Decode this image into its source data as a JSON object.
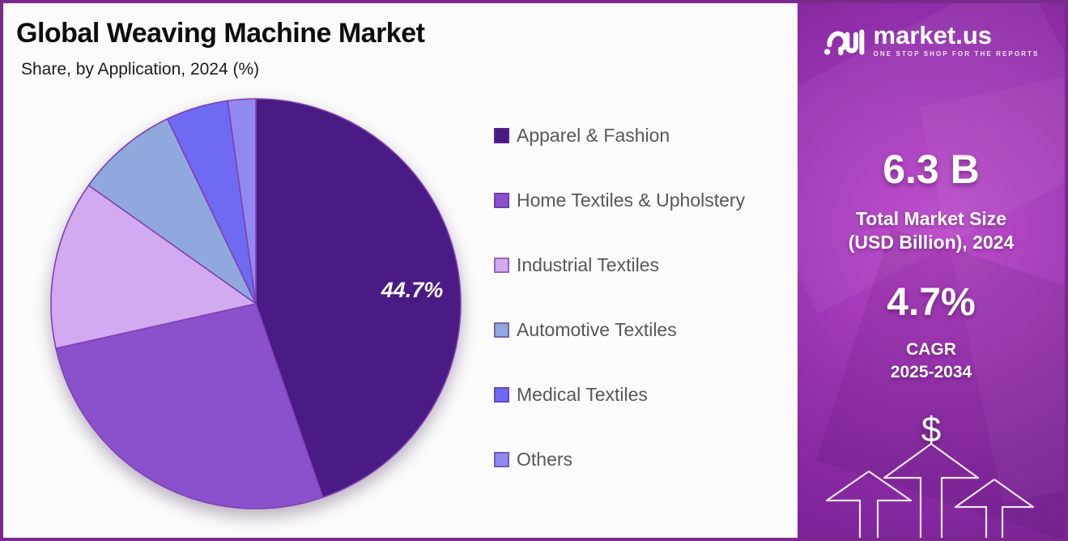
{
  "chart_data": {
    "type": "pie",
    "title": "Global Weaving Machine Market",
    "subtitle": "Share, by Application, 2024 (%)",
    "unit": "%",
    "categories": [
      "Apparel & Fashion",
      "Home Textiles & Upholstery",
      "Industrial Textiles",
      "Automotive Textiles",
      "Medical Textiles",
      "Others"
    ],
    "values": [
      44.7,
      26.8,
      13.3,
      8.1,
      4.9,
      2.2
    ],
    "colors": [
      "#4a1a85",
      "#8b51cd",
      "#d2aaef",
      "#90a8de",
      "#6f6af2",
      "#9189f0"
    ],
    "start_angle_deg": 0,
    "direction": "clockwise",
    "slice_label": {
      "index": 0,
      "text": "44.7%"
    },
    "legend_position": "right"
  },
  "sidebar": {
    "logo": {
      "brand": "market.us",
      "tagline": "ONE STOP SHOP FOR THE REPORTS"
    },
    "market_size": {
      "value": "6.3 B",
      "label_line1": "Total Market Size",
      "label_line2": "(USD Billion), 2024"
    },
    "cagr": {
      "value": "4.7%",
      "label_line1": "CAGR",
      "label_line2": "2025-2034"
    },
    "dollar_symbol": "$"
  },
  "theme": {
    "border_accent": "#7b2a8b",
    "pie_stroke": "#8040b4",
    "sidebar_magenta": "#a238b8",
    "panel_background": "#fbfbfb",
    "legend_text_color": "#58585a"
  }
}
